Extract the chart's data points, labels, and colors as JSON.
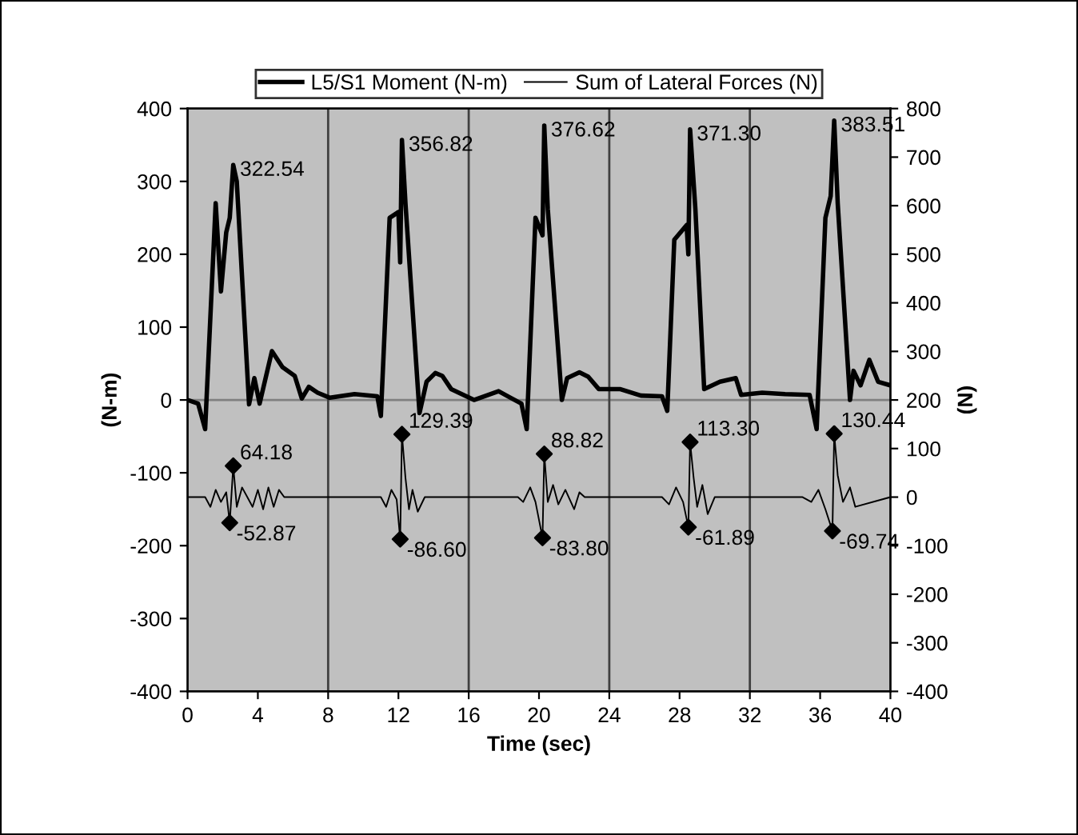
{
  "chart_data": {
    "type": "line",
    "xlabel": "Time (sec)",
    "ylabel": "(N-m)",
    "y2label": "(N)",
    "xlim": [
      0,
      40
    ],
    "xticks": [
      0,
      4,
      8,
      12,
      16,
      20,
      24,
      28,
      32,
      36,
      40
    ],
    "ylim": [
      -400,
      400
    ],
    "yticks": [
      -400,
      -300,
      -200,
      -100,
      0,
      100,
      200,
      300,
      400
    ],
    "y2lim": [
      -400,
      800
    ],
    "y2ticks": [
      -400,
      -300,
      -200,
      -100,
      0,
      100,
      200,
      300,
      400,
      500,
      600,
      700,
      800
    ],
    "grid": false,
    "legend": "top",
    "ref_lines": [
      {
        "axis": "y",
        "value": 0,
        "color": "#808080"
      },
      {
        "axis": "x",
        "value": 8,
        "color": "#404040"
      },
      {
        "axis": "x",
        "value": 16,
        "color": "#404040"
      },
      {
        "axis": "x",
        "value": 24,
        "color": "#404040"
      },
      {
        "axis": "x",
        "value": 32,
        "color": "#404040"
      }
    ],
    "series": [
      {
        "name": "L5/S1 Moment (N-m)",
        "color": "#000000",
        "marker": "none",
        "x": [
          0,
          0.6,
          1.0,
          1.6,
          1.9,
          2.2,
          2.4,
          2.6,
          2.8,
          3.5,
          3.8,
          4.1,
          4.8,
          5.4,
          6.1,
          6.5,
          6.9,
          7.4,
          8.1,
          9.5,
          10.8,
          11.0,
          11.5,
          12.0,
          12.1,
          12.2,
          12.4,
          13.2,
          13.6,
          14.1,
          14.5,
          15.0,
          16.3,
          17.7,
          18.3,
          19.0,
          19.3,
          19.8,
          20.2,
          20.3,
          20.5,
          21.3,
          21.6,
          22.3,
          22.8,
          23.4,
          24.6,
          25.8,
          27.0,
          27.3,
          27.7,
          28.4,
          28.5,
          28.6,
          28.9,
          29.4,
          30.3,
          31.2,
          31.5,
          32.7,
          34.0,
          35.4,
          35.8,
          36.3,
          36.6,
          36.8,
          37.0,
          37.7,
          37.9,
          38.3,
          38.8,
          39.3,
          40
        ],
        "values": [
          0,
          -5,
          -40,
          270,
          149,
          230,
          250,
          322.54,
          300,
          -6,
          30,
          -5,
          67,
          45,
          33,
          2,
          18,
          10,
          3,
          8,
          5,
          -22,
          250,
          258,
          189,
          356.82,
          270,
          -18,
          25,
          37,
          33,
          15,
          0,
          12,
          4,
          -5,
          -40,
          250,
          226,
          376.62,
          262,
          0,
          30,
          38,
          32,
          15,
          15,
          6,
          5,
          -15,
          220,
          240,
          200,
          371.3,
          262,
          15,
          25,
          30,
          7,
          10,
          8,
          7,
          -40,
          250,
          280,
          383.51,
          270,
          0,
          40,
          20,
          55,
          25,
          20
        ]
      },
      {
        "name": "Sum of Lateral Forces (N)",
        "color": "#000000",
        "marker": "none",
        "axis": "y2",
        "x": [
          0,
          1.0,
          1.3,
          1.6,
          1.9,
          2.2,
          2.4,
          2.6,
          2.8,
          3.1,
          3.4,
          3.7,
          4.0,
          4.3,
          4.6,
          4.9,
          5.2,
          5.5,
          6.2,
          10.5,
          11.0,
          11.3,
          11.6,
          11.9,
          12.1,
          12.2,
          12.4,
          12.6,
          12.8,
          13.1,
          13.5,
          18.8,
          19.1,
          19.5,
          19.8,
          20.2,
          20.3,
          20.5,
          20.8,
          21.1,
          21.5,
          22.0,
          22.3,
          22.6,
          27.0,
          27.4,
          27.8,
          28.2,
          28.5,
          28.6,
          28.8,
          29.0,
          29.3,
          29.6,
          30.0,
          35.0,
          35.5,
          35.9,
          36.3,
          36.7,
          36.8,
          37.0,
          37.3,
          37.7,
          38.0,
          40
        ],
        "values": [
          0,
          0,
          -20,
          15,
          -10,
          10,
          -52.87,
          64.18,
          -20,
          20,
          0,
          -20,
          15,
          -25,
          20,
          -20,
          15,
          0,
          0,
          0,
          0,
          -20,
          15,
          -5,
          -86.6,
          129.39,
          40,
          -25,
          15,
          -30,
          0,
          0,
          -10,
          20,
          -10,
          -83.8,
          88.82,
          -10,
          25,
          -15,
          15,
          -25,
          10,
          0,
          0,
          -15,
          20,
          -10,
          -61.89,
          113.3,
          40,
          -20,
          25,
          -35,
          0,
          0,
          -10,
          15,
          -25,
          -69.74,
          130.44,
          45,
          -10,
          20,
          -20,
          0
        ]
      },
      {
        "type": "scatter",
        "color": "#000000",
        "marker": "diamond",
        "axis": "y2",
        "x": [
          2.4,
          2.6,
          12.1,
          12.2,
          20.2,
          20.3,
          28.5,
          28.6,
          36.7,
          36.8
        ],
        "values": [
          -52.87,
          64.18,
          -86.6,
          129.39,
          -83.8,
          88.82,
          -61.89,
          113.3,
          -69.74,
          130.44
        ],
        "value_labels": [
          "-52.87",
          "64.18",
          "-86.60",
          "129.39",
          "-83.80",
          "88.82",
          "-61.89",
          "113.30",
          "-69.74",
          "130.44"
        ]
      }
    ],
    "annotations": [
      {
        "text": "322.54",
        "x": 2.6,
        "y": 322.54
      },
      {
        "text": "356.82",
        "x": 12.2,
        "y": 356.82
      },
      {
        "text": "376.62",
        "x": 20.3,
        "y": 376.62
      },
      {
        "text": "371.30",
        "x": 28.6,
        "y": 371.3
      },
      {
        "text": "383.51",
        "x": 36.8,
        "y": 383.51
      }
    ]
  }
}
